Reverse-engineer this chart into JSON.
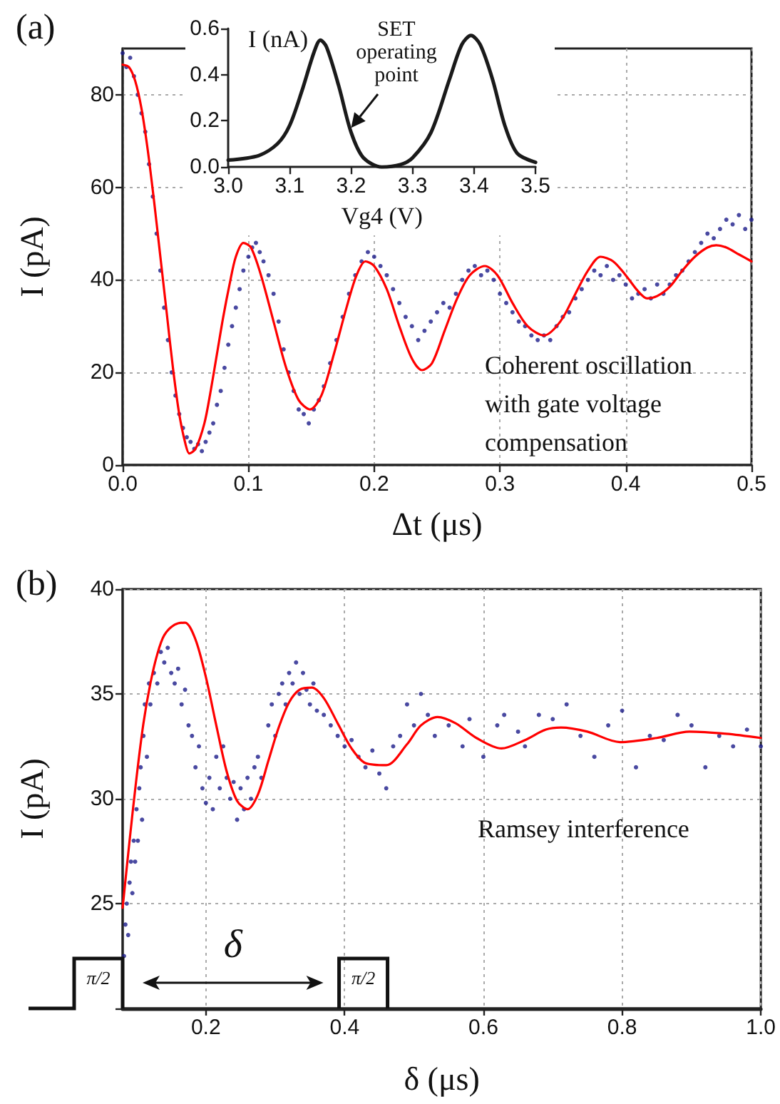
{
  "chart_data": [
    {
      "type": "scatter",
      "title": "(a)",
      "xlabel": "Δt (μs)",
      "ylabel": "I (pA)",
      "xlim": [
        0,
        0.5
      ],
      "ylim": [
        0,
        90
      ],
      "xticks": [
        {
          "value": 0,
          "label": "0.0"
        },
        0.1,
        0.2,
        0.3,
        0.4,
        0.5
      ],
      "yticks": [
        0,
        20,
        40,
        60,
        80
      ],
      "grid": true,
      "annotations": [
        "Coherent oscillation with gate voltage compensation"
      ],
      "series": [
        {
          "marker": "circle",
          "color": "#1c1c8a",
          "x": [
            0,
            0.003,
            0.006,
            0.009,
            0.012,
            0.015,
            0.018,
            0.021,
            0.024,
            0.027,
            0.03,
            0.033,
            0.036,
            0.039,
            0.042,
            0.045,
            0.048,
            0.051,
            0.054,
            0.057,
            0.06,
            0.063,
            0.066,
            0.069,
            0.072,
            0.075,
            0.078,
            0.081,
            0.084,
            0.087,
            0.09,
            0.093,
            0.096,
            0.1,
            0.103,
            0.106,
            0.109,
            0.112,
            0.116,
            0.12,
            0.124,
            0.128,
            0.132,
            0.136,
            0.14,
            0.144,
            0.148,
            0.152,
            0.156,
            0.16,
            0.165,
            0.17,
            0.175,
            0.18,
            0.185,
            0.19,
            0.195,
            0.2,
            0.205,
            0.21,
            0.215,
            0.22,
            0.225,
            0.23,
            0.235,
            0.24,
            0.245,
            0.25,
            0.255,
            0.26,
            0.265,
            0.27,
            0.275,
            0.28,
            0.285,
            0.29,
            0.295,
            0.3,
            0.305,
            0.31,
            0.315,
            0.32,
            0.325,
            0.33,
            0.335,
            0.34,
            0.345,
            0.35,
            0.355,
            0.36,
            0.365,
            0.37,
            0.375,
            0.38,
            0.385,
            0.39,
            0.395,
            0.4,
            0.405,
            0.41,
            0.415,
            0.42,
            0.425,
            0.43,
            0.435,
            0.44,
            0.445,
            0.45,
            0.455,
            0.46,
            0.465,
            0.47,
            0.475,
            0.48,
            0.485,
            0.49,
            0.495,
            0.5
          ],
          "values": [
            89,
            86,
            88,
            84,
            80,
            76,
            72,
            65,
            58,
            50,
            42,
            34,
            27,
            20,
            15,
            11,
            8,
            6,
            5,
            3.5,
            4.5,
            3,
            5,
            7,
            9,
            13,
            16,
            21,
            26,
            30,
            34,
            38,
            42,
            45,
            47,
            48,
            46,
            44,
            41,
            37,
            31,
            25,
            20,
            16,
            12,
            11,
            9,
            12,
            14,
            17,
            22,
            27,
            32,
            37,
            41,
            44,
            46,
            45,
            43,
            41,
            38,
            35,
            32,
            30,
            27,
            29,
            31,
            33,
            35,
            34,
            37,
            40,
            42,
            43,
            41,
            42,
            40,
            37,
            35,
            33,
            31,
            30,
            28,
            27,
            28,
            27,
            30,
            32,
            33,
            36,
            38,
            40,
            42,
            41,
            43,
            40,
            41,
            39,
            36,
            37,
            38,
            36,
            39,
            37,
            39,
            41,
            42,
            44,
            46,
            48,
            50,
            49,
            51,
            53,
            52,
            54,
            51,
            53
          ]
        },
        {
          "type": "line",
          "marker": "none",
          "color": "#ff0000",
          "x": [
            0,
            0.005,
            0.01,
            0.015,
            0.02,
            0.025,
            0.03,
            0.035,
            0.04,
            0.045,
            0.05,
            0.053,
            0.058,
            0.065,
            0.07,
            0.075,
            0.08,
            0.085,
            0.09,
            0.096,
            0.102,
            0.11,
            0.12,
            0.13,
            0.14,
            0.149,
            0.158,
            0.168,
            0.178,
            0.186,
            0.193,
            0.2,
            0.21,
            0.22,
            0.23,
            0.238,
            0.246,
            0.256,
            0.266,
            0.276,
            0.288,
            0.298,
            0.31,
            0.322,
            0.335,
            0.348,
            0.36,
            0.37,
            0.38,
            0.39,
            0.4,
            0.41,
            0.417,
            0.425,
            0.435,
            0.445,
            0.455,
            0.465,
            0.472,
            0.48,
            0.49,
            0.5
          ],
          "values": [
            86.5,
            86,
            83,
            77,
            68,
            57,
            45,
            33,
            21,
            11,
            4.5,
            2.5,
            3.5,
            9,
            16,
            24,
            32,
            39,
            45,
            48,
            47,
            41,
            31,
            21,
            14,
            12,
            15,
            24,
            34,
            41,
            44,
            43,
            38,
            30,
            23,
            20.5,
            22,
            29,
            36,
            41,
            43,
            41,
            35,
            30,
            28,
            31,
            37,
            42,
            45,
            44,
            41,
            37.5,
            36,
            36.5,
            38.5,
            42,
            45,
            47,
            47.5,
            47,
            45.5,
            44
          ]
        }
      ]
    },
    {
      "type": "line",
      "xlabel": "Vg4 (V)",
      "ylabel": "I (nA)",
      "xlim": [
        3,
        3.5
      ],
      "ylim": [
        0,
        0.6
      ],
      "xticks": [
        {
          "value": 3,
          "label": "3.0"
        },
        3.1,
        3.2,
        3.3,
        3.4,
        3.5
      ],
      "yticks": [
        {
          "value": 0,
          "label": "0.0"
        },
        0.2,
        0.4,
        0.6
      ],
      "annotations": [
        {
          "text": "SET operating point",
          "x": 3.2,
          "y": 0.17
        }
      ],
      "series": [
        {
          "marker": "none",
          "color": "#1a1a1a",
          "x": [
            3,
            3.05,
            3.08,
            3.1,
            3.12,
            3.14,
            3.15,
            3.16,
            3.18,
            3.2,
            3.22,
            3.25,
            3.28,
            3.3,
            3.33,
            3.36,
            3.38,
            3.395,
            3.41,
            3.43,
            3.45,
            3.47,
            3.5
          ],
          "values": [
            0.03,
            0.05,
            0.1,
            0.18,
            0.33,
            0.5,
            0.55,
            0.52,
            0.35,
            0.15,
            0.04,
            0,
            0.01,
            0.04,
            0.15,
            0.38,
            0.53,
            0.57,
            0.53,
            0.38,
            0.18,
            0.06,
            0.02
          ]
        }
      ]
    },
    {
      "type": "scatter",
      "title": "(b)",
      "xlabel": "δ (μs)",
      "ylabel": "I (pA)",
      "xlim": [
        0.08,
        1
      ],
      "ylim": [
        20,
        40
      ],
      "xticks": [
        0.2,
        0.4,
        0.6,
        0.8,
        {
          "value": 1,
          "label": "1.0"
        }
      ],
      "yticks": [
        {
          "value": 20,
          "label": null
        },
        25,
        30,
        35,
        40
      ],
      "grid": true,
      "annotations": [
        "Ramsey interference",
        "π/2",
        "δ",
        "π/2"
      ],
      "series": [
        {
          "marker": "circle",
          "color": "#1c1c8a",
          "x": [
            0.082,
            0.084,
            0.086,
            0.088,
            0.09,
            0.092,
            0.094,
            0.096,
            0.098,
            0.1,
            0.102,
            0.104,
            0.106,
            0.108,
            0.11,
            0.112,
            0.115,
            0.118,
            0.12,
            0.125,
            0.13,
            0.135,
            0.14,
            0.145,
            0.15,
            0.155,
            0.16,
            0.165,
            0.17,
            0.175,
            0.18,
            0.185,
            0.19,
            0.195,
            0.2,
            0.205,
            0.21,
            0.215,
            0.22,
            0.225,
            0.23,
            0.235,
            0.24,
            0.245,
            0.25,
            0.255,
            0.26,
            0.265,
            0.27,
            0.275,
            0.28,
            0.29,
            0.295,
            0.3,
            0.305,
            0.31,
            0.315,
            0.32,
            0.325,
            0.33,
            0.335,
            0.34,
            0.345,
            0.35,
            0.355,
            0.36,
            0.37,
            0.38,
            0.39,
            0.4,
            0.41,
            0.42,
            0.43,
            0.44,
            0.45,
            0.46,
            0.47,
            0.48,
            0.49,
            0.5,
            0.51,
            0.52,
            0.53,
            0.55,
            0.57,
            0.58,
            0.6,
            0.62,
            0.63,
            0.65,
            0.66,
            0.68,
            0.7,
            0.72,
            0.74,
            0.76,
            0.78,
            0.8,
            0.82,
            0.84,
            0.86,
            0.88,
            0.9,
            0.92,
            0.94,
            0.96,
            0.98,
            1
          ],
          "values": [
            22.5,
            24,
            25,
            23.5,
            26,
            27,
            25.5,
            28,
            27,
            29.5,
            28,
            30.5,
            31.5,
            29,
            33,
            34.5,
            32,
            35.5,
            34.5,
            36,
            35.5,
            37,
            36.5,
            37.2,
            36,
            35.5,
            36.2,
            34.5,
            35.2,
            33.5,
            33,
            31.5,
            32.5,
            30.5,
            29.8,
            31,
            29.5,
            32,
            30.5,
            32.5,
            31,
            30,
            30.8,
            29,
            30.5,
            29.5,
            31,
            30,
            31.5,
            32,
            31,
            33.5,
            34.5,
            33,
            35,
            35.5,
            34.5,
            36,
            35.5,
            36.5,
            35,
            36,
            35.2,
            34.5,
            35.5,
            34.2,
            34,
            33.5,
            33,
            32.5,
            32.8,
            32,
            31.5,
            32.3,
            31.2,
            30.5,
            32.5,
            33,
            34.5,
            33.5,
            35,
            34,
            33,
            33.5,
            32.5,
            33.8,
            32,
            33.5,
            34,
            33.2,
            32.5,
            34,
            33.8,
            34.5,
            33,
            32,
            33.5,
            34.2,
            31.5,
            33,
            32.8,
            34,
            33.5,
            31.5,
            33,
            32.5,
            33.3,
            32.5
          ]
        },
        {
          "type": "line",
          "marker": "none",
          "color": "#ff0000",
          "x": [
            0.08,
            0.09,
            0.1,
            0.11,
            0.12,
            0.13,
            0.14,
            0.155,
            0.17,
            0.185,
            0.2,
            0.215,
            0.23,
            0.245,
            0.26,
            0.275,
            0.29,
            0.305,
            0.32,
            0.335,
            0.353,
            0.37,
            0.39,
            0.41,
            0.43,
            0.46,
            0.49,
            0.51,
            0.534,
            0.56,
            0.59,
            0.626,
            0.66,
            0.69,
            0.712,
            0.75,
            0.797,
            0.85,
            0.897,
            0.95,
            1
          ],
          "values": [
            24.8,
            28,
            31,
            33.6,
            35.5,
            36.9,
            37.8,
            38.3,
            38.4,
            37.6,
            35.8,
            33.5,
            31.3,
            29.9,
            29.5,
            30.2,
            31.8,
            33.4,
            34.6,
            35.2,
            35.3,
            34.8,
            33.6,
            32.4,
            31.7,
            31.6,
            32.6,
            33.5,
            33.9,
            33.6,
            32.9,
            32.4,
            32.8,
            33.3,
            33.4,
            33.2,
            32.7,
            32.9,
            33.2,
            33.1,
            32.9
          ]
        }
      ]
    }
  ]
}
